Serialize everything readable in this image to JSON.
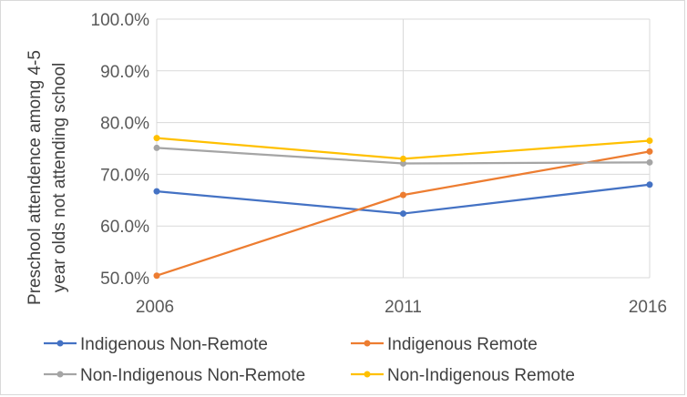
{
  "chart_data": {
    "type": "line",
    "x": [
      "2006",
      "2011",
      "2016"
    ],
    "ylabel_line1": "Preschool attendence among 4-5",
    "ylabel_line2": "year olds not attending school",
    "ylim": [
      50,
      100
    ],
    "yticks": [
      "50.0%",
      "60.0%",
      "70.0%",
      "80.0%",
      "90.0%",
      "100.0%"
    ],
    "grid": true,
    "legend_position": "bottom",
    "series": [
      {
        "name": "Indigenous Non-Remote",
        "color": "#4472C4",
        "values": [
          66.7,
          62.4,
          68.0
        ]
      },
      {
        "name": "Indigenous Remote",
        "color": "#ED7D31",
        "values": [
          50.4,
          66.0,
          74.4
        ]
      },
      {
        "name": "Non-Indigenous Non-Remote",
        "color": "#A5A5A5",
        "values": [
          75.1,
          72.1,
          72.3
        ]
      },
      {
        "name": "Non-Indigenous Remote",
        "color": "#FFC000",
        "values": [
          77.0,
          73.0,
          76.5
        ]
      }
    ]
  }
}
